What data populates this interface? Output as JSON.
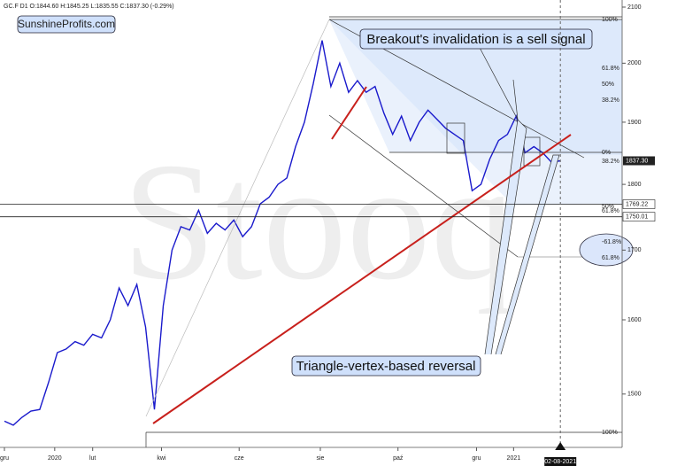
{
  "chart_data": {
    "type": "line",
    "header": "GC.F  D1  O:1844.60  H:1845.25  L:1835.55  C:1837.30  (-0.29%)",
    "watermark": "Stooq",
    "brand": "SunshineProfits.com",
    "annotations": [
      "Breakout's invalidation is a sell signal",
      "Triangle-vertex-based reversal"
    ],
    "fib_labels": [
      "100%",
      "61.8%",
      "50%",
      "38.2%",
      "0%",
      "38.2%",
      "50%",
      "61.8%",
      "-61.8%",
      "61.8%",
      "100%"
    ],
    "date_marker": {
      "value": 63,
      "label": "02-08-2021"
    },
    "log_scale": true,
    "color": "#1a1acc",
    "x": [
      0,
      1,
      2,
      3,
      4,
      5,
      6,
      7,
      8,
      9,
      10,
      11,
      12,
      13,
      14,
      15,
      16,
      17,
      18,
      19,
      20,
      21,
      22,
      23,
      24,
      25,
      26,
      27,
      28,
      29,
      30,
      31,
      32,
      33,
      34,
      35,
      36,
      37,
      38,
      39,
      40,
      41,
      42,
      43,
      44,
      45,
      46,
      47,
      48,
      49,
      50,
      51,
      52,
      53,
      54,
      55,
      56,
      57,
      58,
      59,
      60,
      61,
      62,
      63
    ],
    "values": [
      1465,
      1460,
      1470,
      1478,
      1480,
      1515,
      1555,
      1560,
      1570,
      1565,
      1580,
      1575,
      1600,
      1645,
      1620,
      1650,
      1590,
      1480,
      1620,
      1700,
      1735,
      1730,
      1760,
      1725,
      1740,
      1730,
      1745,
      1720,
      1735,
      1770,
      1780,
      1800,
      1810,
      1860,
      1900,
      1965,
      2040,
      1960,
      2000,
      1950,
      1970,
      1950,
      1960,
      1915,
      1880,
      1910,
      1870,
      1900,
      1920,
      1905,
      1890,
      1880,
      1870,
      1790,
      1800,
      1840,
      1870,
      1880,
      1910,
      1850,
      1860,
      1850,
      1835,
      1837.3
    ],
    "last_price": {
      "value": 1837.3,
      "label": "1837.30"
    },
    "levels": [
      1769.22,
      1750.01
    ],
    "xlim": [
      -0.5,
      70
    ],
    "ylim": [
      1432,
      2113
    ],
    "xticks": [
      {
        "value": 0,
        "label": "gru"
      },
      {
        "value": 5.7,
        "label": "2020"
      },
      {
        "value": 10,
        "label": "lut"
      },
      {
        "value": 17.8,
        "label": "kwi"
      },
      {
        "value": 26.6,
        "label": "cze"
      },
      {
        "value": 35.8,
        "label": "sie"
      },
      {
        "value": 44.6,
        "label": "paź"
      },
      {
        "value": 53.5,
        "label": "gru"
      },
      {
        "value": 57.7,
        "label": "2021"
      }
    ],
    "yticks": [
      1500,
      1600,
      1700,
      1800,
      1900,
      2000,
      2100
    ]
  }
}
